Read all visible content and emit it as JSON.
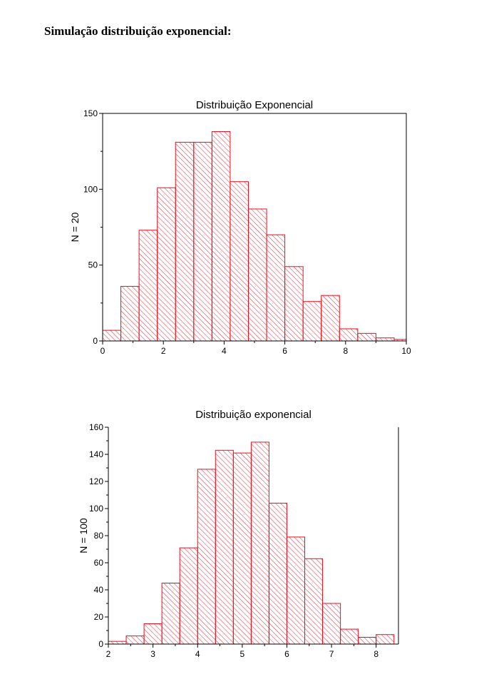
{
  "document": {
    "heading": "Simulação distribuição exponencial:"
  },
  "colors": {
    "bar_stroke": "#e8101e",
    "bar_hatch": "#e8101e",
    "axis": "#000000",
    "background": "#ffffff"
  },
  "chart_data": [
    {
      "type": "bar",
      "title": "Distribuição Exponencial",
      "xlabel": "",
      "ylabel": "N = 20",
      "bin_edges": [
        0,
        0.6,
        1.2,
        1.8,
        2.4,
        3.0,
        3.6,
        4.2,
        4.8,
        5.4,
        6.0,
        6.6,
        7.2,
        7.8,
        8.4,
        9.0,
        9.6,
        10.0
      ],
      "values": [
        7,
        36,
        73,
        101,
        131,
        131,
        138,
        105,
        87,
        70,
        49,
        26,
        30,
        8,
        5,
        2,
        1
      ],
      "xlim": [
        0,
        10
      ],
      "ylim": [
        0,
        150
      ],
      "xticks": [
        0,
        2,
        4,
        6,
        8,
        10
      ],
      "xtick_labels": [
        "0",
        "2",
        "4",
        "6",
        "8",
        "10"
      ],
      "yticks": [
        0,
        50,
        100,
        150
      ],
      "ytick_labels": [
        "0",
        "50",
        "100",
        "150"
      ],
      "frame": "box",
      "grid": false,
      "fill": "hatched"
    },
    {
      "type": "bar",
      "title": "Distribuição exponencial",
      "xlabel": "",
      "ylabel": "N = 100",
      "bin_edges": [
        2.0,
        2.4,
        2.8,
        3.2,
        3.6,
        4.0,
        4.4,
        4.8,
        5.2,
        5.6,
        6.0,
        6.4,
        6.8,
        7.2,
        7.6,
        8.0,
        8.4
      ],
      "values": [
        2,
        6,
        15,
        45,
        71,
        129,
        143,
        141,
        149,
        104,
        79,
        63,
        30,
        11,
        5,
        7
      ],
      "xlim": [
        2,
        8.5
      ],
      "ylim": [
        0,
        160
      ],
      "xticks": [
        2,
        3,
        4,
        5,
        6,
        7,
        8
      ],
      "xtick_labels": [
        "2",
        "3",
        "4",
        "5",
        "6",
        "7",
        "8"
      ],
      "yticks": [
        0,
        20,
        40,
        60,
        80,
        100,
        120,
        140,
        160
      ],
      "ytick_labels": [
        "0",
        "20",
        "40",
        "60",
        "80",
        "100",
        "120",
        "140",
        "160"
      ],
      "frame": "open-top",
      "grid": false,
      "fill": "hatched"
    }
  ]
}
